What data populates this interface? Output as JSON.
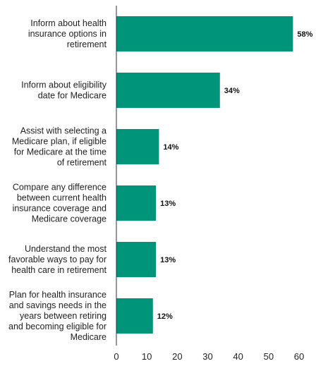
{
  "colors": {
    "bar": "#00957A",
    "axis": "#333333",
    "text": "#222222"
  },
  "chart_data": {
    "type": "bar",
    "orientation": "horizontal",
    "categories": [
      [
        "Inform about health",
        "insurance options in",
        "retirement"
      ],
      [
        "Inform about eligibility",
        "date for Medicare"
      ],
      [
        "Assist with selecting a",
        "Medicare plan, if eligible",
        "for Medicare at the time",
        "of retirement"
      ],
      [
        "Compare any difference",
        "between current health",
        "insurance coverage and",
        "Medicare coverage"
      ],
      [
        "Understand the most",
        "favorable ways to pay for",
        "health care in retirement"
      ],
      [
        "Plan for health insurance",
        "and savings needs in the",
        "years between retiring",
        "and becoming eligible for",
        "Medicare"
      ]
    ],
    "values": [
      58,
      34,
      14,
      13,
      13,
      12
    ],
    "value_labels": [
      "58%",
      "34%",
      "14%",
      "13%",
      "13%",
      "12%"
    ],
    "xticks": [
      "0",
      "10",
      "20",
      "30",
      "40",
      "50",
      "60"
    ],
    "xlim": [
      0,
      60
    ],
    "grid": false,
    "title": "",
    "xlabel": "",
    "ylabel": ""
  }
}
